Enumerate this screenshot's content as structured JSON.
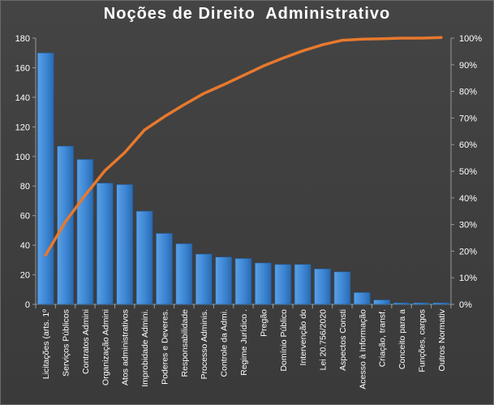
{
  "chart_data": {
    "type": "bar",
    "title": "Noções de Direito  Administrativo",
    "categories": [
      "Licitações (arts. 1º",
      "Serviços Públicos",
      "Contratos Admini",
      "Organização Admini",
      "Atos administrativos",
      "Improbidade Admini.",
      "Poderes e Deveres.",
      "Responsabilidade",
      "Processo Adminis.",
      "Controle da Admi.",
      "Regime Jurídico .",
      "Pregão",
      "Domínio Público",
      "Intervenção do",
      "Lei 20.756/2020",
      "Aspectos Consti",
      "Acesso à Informação",
      "Criação, transf.",
      "Conceito para a",
      "Funções, cargos",
      "Outros Normativ"
    ],
    "series": [
      {
        "values": [
          170,
          107,
          98,
          82,
          81,
          63,
          48,
          41,
          34,
          32,
          31,
          28,
          27,
          27,
          24,
          22,
          8,
          3,
          1,
          1,
          1
        ]
      },
      {
        "values": [
          18.5,
          31,
          41,
          50.2,
          57,
          65.5,
          70.5,
          75,
          79.2,
          82.5,
          86,
          89.5,
          92.5,
          95.2,
          97.5,
          99.2,
          99.6,
          99.8,
          100,
          100,
          100.2
        ]
      }
    ],
    "ylim": [
      0,
      180
    ],
    "yticks": [
      "0",
      "20",
      "40",
      "60",
      "80",
      "100",
      "120",
      "140",
      "160",
      "180"
    ],
    "y2lim": [
      0,
      100
    ],
    "y2ticks": [
      "0%",
      "10%",
      "20%",
      "30%",
      "40%",
      "50%",
      "60%",
      "70%",
      "80%",
      "90%",
      "100%"
    ],
    "grid": false,
    "legend": "none",
    "colors": {
      "bar": "#3d86d4",
      "bar_dark": "#2a6fb8",
      "line": "#e8792d",
      "text": "#ffffff",
      "axis": "#9a9a9a"
    }
  }
}
